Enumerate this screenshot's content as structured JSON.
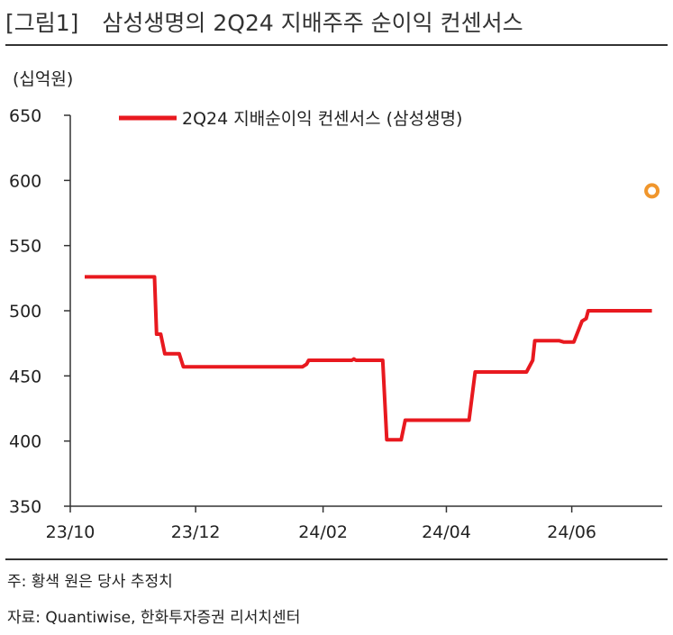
{
  "header": {
    "figure_tag": "[그림1]",
    "title": "삼성생명의 2Q24 지배주주 순이익 컨센서스"
  },
  "chart_data": {
    "type": "line",
    "title": "삼성생명의 2Q24 지배주주 순이익 컨센서스",
    "unit_label": "(십억원)",
    "xlabel": "",
    "ylabel": "",
    "ylim": [
      350,
      650
    ],
    "yticks": [
      "350",
      "400",
      "450",
      "500",
      "550",
      "600",
      "650"
    ],
    "xlim": [
      "2023-10-01",
      "2024-07-15"
    ],
    "xticks": [
      {
        "date": "2023-10-01",
        "label": "23/10"
      },
      {
        "date": "2023-12-01",
        "label": "23/12"
      },
      {
        "date": "2024-02-01",
        "label": "24/02"
      },
      {
        "date": "2024-04-01",
        "label": "24/04"
      },
      {
        "date": "2024-06-01",
        "label": "24/06"
      }
    ],
    "grid": false,
    "legend": "top",
    "series": [
      {
        "name": "2Q24 지배순이익 컨센서스 (삼성생명)",
        "color": "#e8191f",
        "points": [
          [
            "2023-10-08",
            526
          ],
          [
            "2023-11-11",
            526
          ],
          [
            "2023-11-12",
            482
          ],
          [
            "2023-11-14",
            482
          ],
          [
            "2023-11-16",
            467
          ],
          [
            "2023-11-23",
            467
          ],
          [
            "2023-11-25",
            457
          ],
          [
            "2024-01-22",
            457
          ],
          [
            "2024-01-24",
            459
          ],
          [
            "2024-01-25",
            462
          ],
          [
            "2024-02-15",
            462
          ],
          [
            "2024-02-16",
            463
          ],
          [
            "2024-02-17",
            462
          ],
          [
            "2024-03-01",
            462
          ],
          [
            "2024-03-03",
            401
          ],
          [
            "2024-03-10",
            401
          ],
          [
            "2024-03-12",
            416
          ],
          [
            "2024-04-12",
            416
          ],
          [
            "2024-04-15",
            453
          ],
          [
            "2024-05-10",
            453
          ],
          [
            "2024-05-13",
            462
          ],
          [
            "2024-05-14",
            477
          ],
          [
            "2024-05-26",
            477
          ],
          [
            "2024-05-28",
            476
          ],
          [
            "2024-06-02",
            476
          ],
          [
            "2024-06-06",
            492
          ],
          [
            "2024-06-08",
            494
          ],
          [
            "2024-06-09",
            500
          ],
          [
            "2024-07-10",
            500
          ]
        ]
      },
      {
        "name": "황색 원은 당사 추정치",
        "color": "#f0962c",
        "marker": "hollow-circle",
        "points": [
          [
            "2024-07-10",
            592
          ]
        ]
      }
    ]
  },
  "notes": {
    "estimate_note": "주: 황색 원은 당사 추정치",
    "source": "자료: Quantiwise, 한화투자증권 리서치센터"
  },
  "colors": {
    "line": "#e8191f",
    "estimate_marker": "#f0962c",
    "axis": "#333333"
  }
}
